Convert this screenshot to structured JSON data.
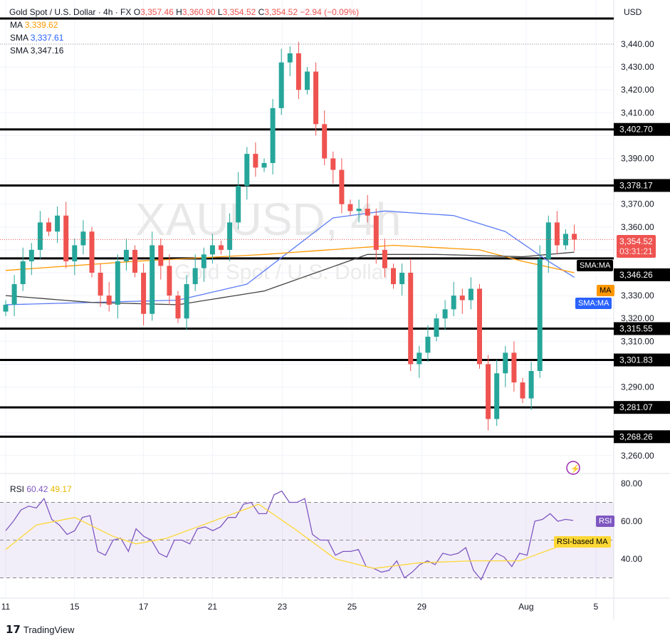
{
  "header": {
    "symbol": "Gold Spot / U.S. Dollar · 4h · FX",
    "o_label": "O",
    "open": "3,357.46",
    "h_label": "H",
    "high": "3,360.90",
    "l_label": "L",
    "low": "3,354.52",
    "c_label": "C",
    "close": "3,354.52",
    "change": "−2.94 (−0.09%)"
  },
  "indicators": [
    {
      "name": "MA",
      "value": "3,339.62",
      "color": "#ff9800"
    },
    {
      "name": "SMA",
      "value": "3,337.61",
      "color": "#2962ff"
    },
    {
      "name": "SMA",
      "value": "3,347.16",
      "color": "#131722"
    }
  ],
  "currency": "USD",
  "watermark": {
    "ticker": "XAUUSD, 4h",
    "desc": "Gold Spot / U.S. Dollar"
  },
  "price_tag": {
    "price": "3,354.52",
    "countdown": "03:31:21"
  },
  "tags": {
    "sma_ma": "SMA:MA",
    "ma": "MA",
    "sma_ma2": "SMA:MA",
    "rsi": "RSI",
    "rsi_ma": "RSI-based MA"
  },
  "rsi_legend": {
    "name": "RSI",
    "value": "60.42",
    "ma_value": "49.17"
  },
  "brand": "TradingView",
  "chart_data": {
    "type": "candlestick",
    "ylim": [
      3255,
      3452
    ],
    "price_ticks": [
      "3,440.00",
      "3,430.00",
      "3,420.00",
      "3,410.00",
      "3,390.00",
      "3,370.00",
      "3,360.00",
      "3,330.00",
      "3,320.00",
      "3,310.00",
      "3,290.00",
      "3,260.00"
    ],
    "price_tick_values": [
      3440,
      3430,
      3420,
      3410,
      3390,
      3370,
      3360,
      3330,
      3320,
      3310,
      3290,
      3260
    ],
    "levels": [
      {
        "value": 3451.2,
        "label": ""
      },
      {
        "value": 3402.7,
        "label": "3,402.70"
      },
      {
        "value": 3378.17,
        "label": "3,378.17"
      },
      {
        "value": 3346.26,
        "label": "3,346.26"
      },
      {
        "value": 3315.55,
        "label": "3,315.55"
      },
      {
        "value": 3301.83,
        "label": "3,301.83"
      },
      {
        "value": 3281.07,
        "label": "3,281.07"
      },
      {
        "value": 3268.26,
        "label": "3,268.26"
      }
    ],
    "x_labels": [
      {
        "label": "11",
        "idx": 0
      },
      {
        "label": "15",
        "idx": 8
      },
      {
        "label": "17",
        "idx": 16
      },
      {
        "label": "21",
        "idx": 24
      },
      {
        "label": "23",
        "idx": 32.1
      },
      {
        "label": "25",
        "idx": 40.2
      },
      {
        "label": "29",
        "idx": 48.3
      },
      {
        "label": "Aug",
        "idx": 60.4
      },
      {
        "label": "5",
        "idx": 68.5
      }
    ],
    "closes": [
      3326,
      3335,
      3345,
      3350,
      3362,
      3358,
      3365,
      3345,
      3352,
      3358,
      3340,
      3330,
      3326,
      3345,
      3350,
      3340,
      3322,
      3352,
      3343,
      3330,
      3320,
      3335,
      3342,
      3348,
      3352,
      3350,
      3362,
      3378,
      3392,
      3386,
      3388,
      3412,
      3432,
      3436,
      3420,
      3428,
      3405,
      3390,
      3385,
      3370,
      3367,
      3368,
      3365,
      3350,
      3342,
      3335,
      3340,
      3300,
      3305,
      3312,
      3320,
      3324,
      3330,
      3328,
      3333,
      3300,
      3276,
      3296,
      3305,
      3292,
      3285,
      3297,
      3346,
      3362,
      3352,
      3357,
      3354.52
    ],
    "sma_fast": [
      [
        0,
        3326
      ],
      [
        20,
        3328
      ],
      [
        28,
        3335
      ],
      [
        38,
        3364
      ],
      [
        44,
        3367
      ],
      [
        52,
        3365
      ],
      [
        58,
        3358
      ],
      [
        63,
        3345
      ],
      [
        66,
        3338
      ]
    ],
    "ma": [
      [
        0,
        3341
      ],
      [
        15,
        3345
      ],
      [
        30,
        3348
      ],
      [
        45,
        3352
      ],
      [
        55,
        3350
      ],
      [
        60,
        3345
      ],
      [
        66,
        3340
      ]
    ],
    "sma_slow": [
      [
        0,
        3330
      ],
      [
        10,
        3327
      ],
      [
        20,
        3326
      ],
      [
        30,
        3332
      ],
      [
        42,
        3348
      ],
      [
        50,
        3348
      ],
      [
        60,
        3347
      ],
      [
        66,
        3349
      ]
    ],
    "rsi": [
      55,
      60,
      66,
      68,
      67,
      72,
      61,
      58,
      53,
      55,
      62,
      63,
      44,
      42,
      50,
      51,
      44,
      56,
      52,
      50,
      43,
      41,
      50,
      50,
      48,
      56,
      57,
      55,
      57,
      62,
      62,
      69,
      70,
      64,
      64,
      74,
      76,
      70,
      70,
      72,
      53,
      50,
      50,
      42,
      44,
      44,
      45,
      36,
      35,
      33,
      34,
      39,
      30,
      33,
      37,
      39,
      37,
      43,
      42,
      43,
      46,
      34,
      29,
      38,
      43,
      41,
      36,
      43,
      42,
      60,
      61,
      64,
      60,
      61,
      60.42
    ],
    "rsi_ma": [
      [
        0,
        45
      ],
      [
        6,
        58
      ],
      [
        12,
        62
      ],
      [
        20,
        52
      ],
      [
        24,
        48
      ],
      [
        30,
        51
      ],
      [
        38,
        60
      ],
      [
        46,
        69
      ],
      [
        54,
        55
      ],
      [
        60,
        40
      ],
      [
        68,
        35
      ],
      [
        76,
        38
      ],
      [
        86,
        39
      ],
      [
        94,
        39
      ],
      [
        100,
        45
      ],
      [
        104,
        49.17
      ]
    ],
    "rsi_ylim": [
      20,
      85
    ],
    "rsi_levels": [
      70,
      50,
      30
    ],
    "rsi_ticks": [
      "80.00",
      "60.00",
      "40.00"
    ],
    "rsi_tick_values": [
      80,
      60,
      40
    ]
  },
  "colors": {
    "up": "#26a69a",
    "down": "#ef5350",
    "rsi": "#7e57c2",
    "rsi_ma": "#fdd835"
  }
}
